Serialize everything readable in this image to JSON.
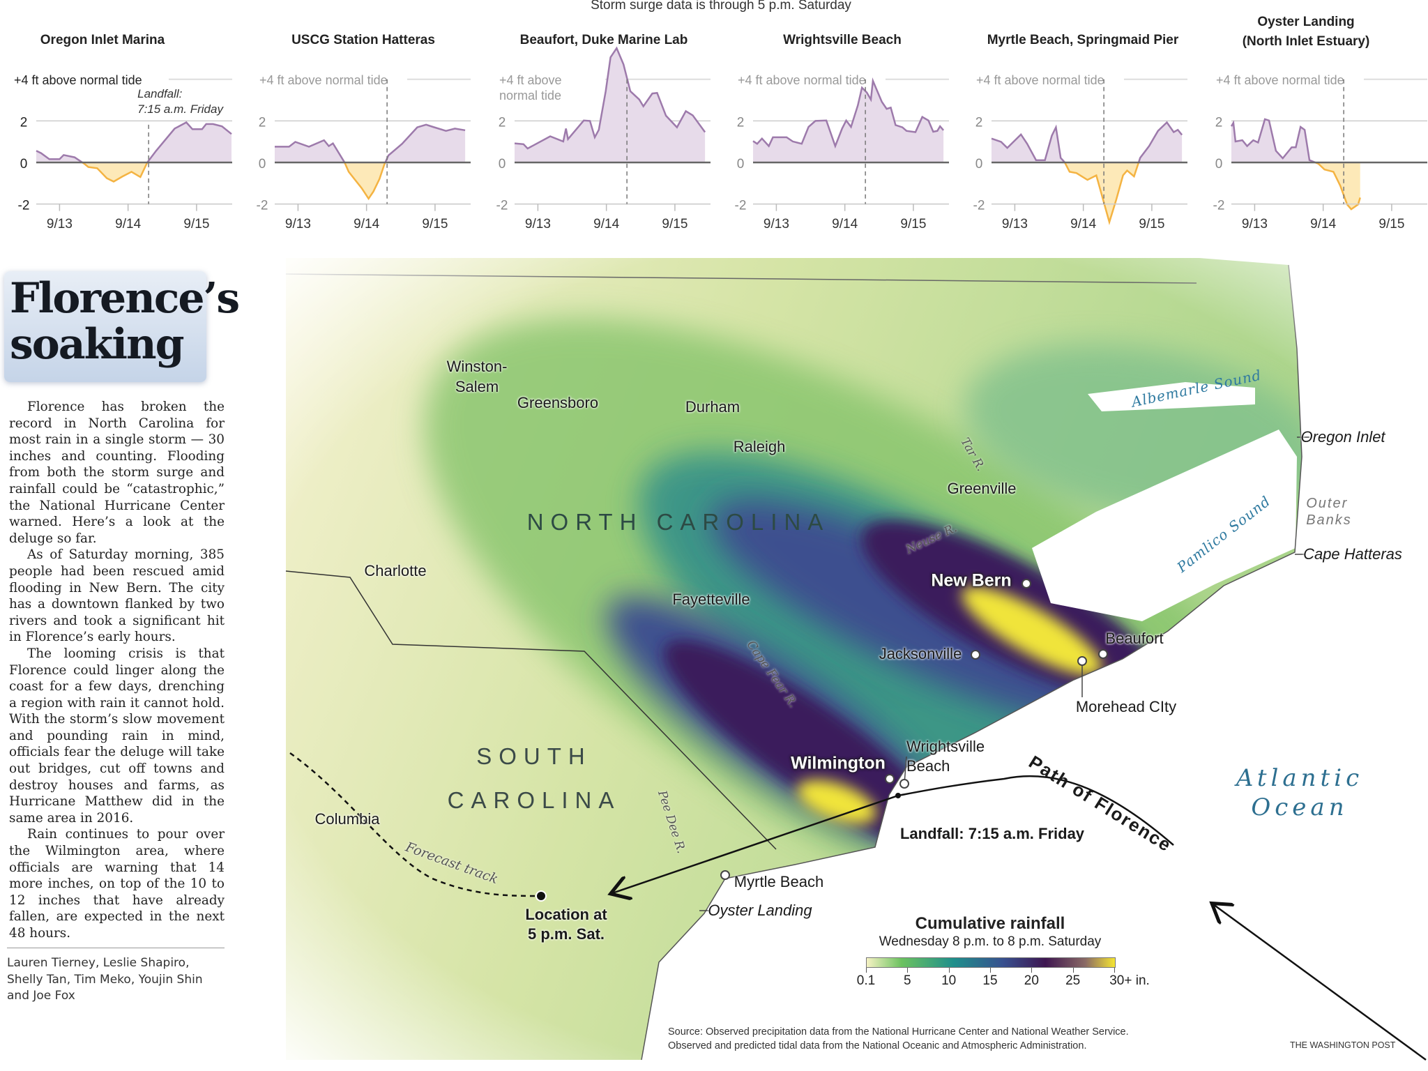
{
  "header": {
    "note": "Storm surge data is through 5 p.m. Saturday"
  },
  "chart_data": [
    {
      "type": "area",
      "title": "Oregon Inlet Marina",
      "ylabel": "+4 ft above normal tide",
      "xlim": [
        12.66,
        15.52
      ],
      "ylim": [
        -2.6,
        4
      ],
      "yticks": [
        2,
        0,
        -2
      ],
      "xticks": [
        {
          "v": 13,
          "label": "9/13"
        },
        {
          "v": 14,
          "label": "9/14"
        },
        {
          "v": 15,
          "label": "9/15"
        }
      ],
      "annotation": {
        "x": 14.3,
        "line1": "Landfall:",
        "line2": "7:15 a.m. Friday"
      },
      "x": [
        12.66,
        12.73,
        12.85,
        13.0,
        13.06,
        13.22,
        13.36,
        13.42,
        13.55,
        13.69,
        13.79,
        13.92,
        14.05,
        14.18,
        14.28,
        14.41,
        14.68,
        14.85,
        14.94,
        15.08,
        15.14,
        15.24,
        15.37,
        15.51
      ],
      "y": [
        0.56,
        0.45,
        0.16,
        0.16,
        0.36,
        0.25,
        -0.06,
        -0.22,
        -0.28,
        -0.76,
        -0.92,
        -0.67,
        -0.45,
        -0.7,
        0,
        0.56,
        1.63,
        1.93,
        1.6,
        1.6,
        1.85,
        1.85,
        1.74,
        1.37
      ]
    },
    {
      "type": "area",
      "title": "USCG Station Hatteras",
      "ylabel": "+4 ft above normal tide",
      "xlim": [
        12.66,
        15.52
      ],
      "ylim": [
        -2.6,
        4
      ],
      "yticks": [
        2,
        0,
        -2
      ],
      "xticks": [
        {
          "v": 13,
          "label": "9/13"
        },
        {
          "v": 14,
          "label": "9/14"
        },
        {
          "v": 15,
          "label": "9/15"
        }
      ],
      "landfall_x": 14.3,
      "x": [
        12.66,
        12.87,
        12.96,
        13.16,
        13.38,
        13.45,
        13.51,
        13.68,
        13.74,
        13.93,
        14.03,
        14.1,
        14.19,
        14.26,
        14.32,
        14.52,
        14.74,
        14.87,
        14.97,
        15.16,
        15.29,
        15.44
      ],
      "y": [
        0.76,
        0.76,
        0.99,
        0.76,
        1.07,
        0.79,
        0.92,
        0,
        -0.45,
        -1.24,
        -1.74,
        -1.4,
        -0.79,
        -0.1,
        0.34,
        0.9,
        1.69,
        1.82,
        1.71,
        1.52,
        1.63,
        1.55
      ]
    },
    {
      "type": "area",
      "title": "Beaufort, Duke Marine Lab",
      "ylabel": "+4 ft above normal tide",
      "xlim": [
        12.66,
        15.52
      ],
      "ylim": [
        -2.6,
        4
      ],
      "yticks": [
        2,
        0,
        -2
      ],
      "xticks": [
        {
          "v": 13,
          "label": "9/13"
        },
        {
          "v": 14,
          "label": "9/14"
        },
        {
          "v": 15,
          "label": "9/15"
        }
      ],
      "landfall_x": 14.3,
      "x": [
        12.66,
        12.79,
        12.85,
        13.18,
        13.37,
        13.41,
        13.44,
        13.67,
        13.76,
        13.83,
        13.89,
        13.99,
        14.06,
        14.15,
        14.25,
        14.35,
        14.48,
        14.54,
        14.67,
        14.74,
        14.87,
        15.03,
        15.16,
        15.26,
        15.44
      ],
      "y": [
        0.92,
        0.88,
        0.67,
        1.26,
        1.01,
        1.63,
        1.12,
        2.02,
        2.0,
        1.21,
        1.57,
        3.43,
        5.06,
        5.5,
        4.72,
        3.43,
        3.03,
        2.7,
        3.32,
        3.35,
        2.25,
        1.69,
        2.47,
        2.27,
        1.46
      ]
    },
    {
      "type": "area",
      "title": "Wrightsville Beach",
      "ylabel": "+4 ft above normal tide",
      "xlim": [
        12.66,
        15.52
      ],
      "ylim": [
        -2.6,
        4
      ],
      "yticks": [
        2,
        0,
        -2
      ],
      "xticks": [
        {
          "v": 13,
          "label": "9/13"
        },
        {
          "v": 14,
          "label": "9/14"
        },
        {
          "v": 15,
          "label": "9/15"
        }
      ],
      "landfall_x": 14.3,
      "x": [
        12.66,
        12.72,
        12.79,
        12.89,
        12.95,
        13.15,
        13.24,
        13.37,
        13.47,
        13.57,
        13.73,
        13.86,
        13.96,
        14.02,
        14.09,
        14.19,
        14.25,
        14.32,
        14.38,
        14.41,
        14.54,
        14.61,
        14.67,
        14.74,
        14.84,
        14.9,
        15.03,
        15.13,
        15.22,
        15.29,
        15.35,
        15.39,
        15.44
      ],
      "y": [
        1.03,
        0.9,
        1.15,
        0.79,
        1.21,
        1.21,
        1.01,
        0.9,
        1.71,
        2.0,
        2.02,
        0.79,
        1.63,
        2.02,
        1.71,
        2.75,
        3.6,
        3.37,
        3.03,
        3.93,
        2.92,
        2.58,
        2.64,
        1.8,
        1.69,
        1.52,
        1.46,
        2.19,
        2.02,
        1.48,
        1.52,
        1.74,
        1.55
      ]
    },
    {
      "type": "area",
      "title": "Myrtle Beach, Springmaid Pier",
      "ylabel": "+4 ft above normal tide",
      "xlim": [
        12.66,
        15.52
      ],
      "ylim": [
        -2.6,
        4
      ],
      "yticks": [
        2,
        0,
        -2
      ],
      "xticks": [
        {
          "v": 13,
          "label": "9/13"
        },
        {
          "v": 14,
          "label": "9/14"
        },
        {
          "v": 15,
          "label": "9/15"
        }
      ],
      "landfall_x": 14.3,
      "x": [
        12.66,
        12.8,
        12.89,
        13.09,
        13.18,
        13.31,
        13.44,
        13.54,
        13.6,
        13.67,
        13.73,
        13.8,
        13.9,
        14.06,
        14.19,
        14.28,
        14.38,
        14.48,
        14.58,
        14.64,
        14.74,
        14.83,
        14.96,
        15.09,
        15.22,
        15.32,
        15.38,
        15.44
      ],
      "y": [
        1.15,
        0.99,
        0.7,
        1.35,
        0.9,
        0.11,
        0.11,
        1.29,
        1.69,
        0.22,
        0,
        -0.45,
        -0.51,
        -0.84,
        -0.62,
        -1.69,
        -2.87,
        -1.8,
        -0.62,
        -0.39,
        -0.67,
        0.22,
        0.79,
        1.52,
        1.93,
        1.46,
        1.57,
        1.33
      ]
    },
    {
      "type": "area",
      "title": "Oyster Landing (North Inlet Estuary)",
      "title_line1": "Oyster Landing",
      "title_line2": "(North Inlet Estuary)",
      "ylabel": "+4 ft above normal tide",
      "xlim": [
        12.66,
        15.52
      ],
      "ylim": [
        -2.6,
        4
      ],
      "yticks": [
        2,
        0,
        -2
      ],
      "xticks": [
        {
          "v": 13,
          "label": "9/13"
        },
        {
          "v": 14,
          "label": "9/14"
        },
        {
          "v": 15,
          "label": "9/15"
        }
      ],
      "landfall_x": 14.3,
      "x": [
        12.66,
        12.69,
        12.72,
        12.82,
        12.89,
        12.98,
        13.05,
        13.15,
        13.21,
        13.31,
        13.41,
        13.54,
        13.6,
        13.67,
        13.73,
        13.8,
        13.93,
        14.02,
        14.15,
        14.25,
        14.35,
        14.41,
        14.51,
        14.54
      ],
      "y": [
        1.74,
        1.91,
        1.01,
        1.07,
        0.79,
        1.07,
        0.96,
        2.08,
        2.02,
        0.56,
        0.2,
        0.73,
        0.73,
        1.71,
        1.57,
        0.11,
        -0.06,
        -0.34,
        -0.45,
        -1.12,
        -2.02,
        -2.25,
        -2.02,
        -1.69
      ]
    }
  ],
  "colors": {
    "above": "#9d7aab",
    "above_fill": "#e7dbea",
    "below": "#f4b342",
    "below_fill": "#fde9b8"
  },
  "article": {
    "title_line1": "Florence’s",
    "title_line2": "soaking",
    "paragraphs": [
      "Florence has broken the record in North Carolina for most rain in a single storm — 30 inches and counting. Flooding from both the storm surge and rainfall could be “catastrophic,” the National Hurricane Center warned. Here’s a look at the deluge so far.",
      "As of Saturday morning, 385 people had been rescued amid flooding in New Bern. The city has a downtown flanked by two rivers and took a significant hit in Florence’s early hours.",
      "The looming crisis is that Florence could linger along the coast for a few days, drenching a region with rain it cannot hold. With the storm’s slow movement and pounding rain in mind, officials fear the deluge will take out bridges, cut off towns and destroy houses and farms, as Hurricane Matthew did in the same area in 2016.",
      "Rain continues to pour over the Wilmington area, where officials are warning that 14 more inches, on top of the 10 to 12 inches that have already fallen, are expected in the next 48 hours."
    ],
    "byline": "Lauren Tierney, Leslie Shapiro, Shelly Tan, Tim Meko, Youjin Shin and Joe Fox"
  },
  "map": {
    "cities": {
      "winston_1": "Winston-",
      "winston_2": "Salem",
      "greensboro": "Greensboro",
      "durham": "Durham",
      "raleigh": "Raleigh",
      "greenville": "Greenville",
      "charlotte": "Charlotte",
      "fayetteville": "Fayetteville",
      "new_bern": "New Bern",
      "jacksonville": "Jacksonville",
      "beaufort": "Beaufort",
      "morehead": "Morehead CIty",
      "wrightsville_1": "Wrightsville",
      "wrightsville_2": "Beach",
      "wilmington": "Wilmington",
      "columbia": "Columbia",
      "myrtle": "Myrtle Beach",
      "oyster": "Oyster Landing",
      "oregon_inlet": "Oregon Inlet",
      "cape_hatteras": "Cape Hatteras"
    },
    "states": {
      "nc": "NORTH CAROLINA",
      "sc_1": "SOUTH",
      "sc_2": "CAROLINA"
    },
    "water": {
      "albemarle": "Albemarle Sound",
      "pamlico": "Pamlico Sound",
      "outer_1": "Outer",
      "outer_2": "Banks",
      "ocean_1": "Atlantic",
      "ocean_2": "Ocean"
    },
    "rivers": {
      "tar": "Tar R.",
      "neuse": "Neuse R.",
      "cape_fear": "Cape Fear R.",
      "pee_dee": "Pee Dee R."
    },
    "storm": {
      "path": "Path of Florence",
      "landfall": "Landfall: 7:15 a.m. Friday",
      "forecast": "Forecast track",
      "location_1": "Location at",
      "location_2": "5 p.m. Sat."
    }
  },
  "legend": {
    "title": "Cumulative rainfall",
    "subtitle": "Wednesday 8 p.m. to 8 p.m. Saturday",
    "ticks": [
      "0.1",
      "5",
      "10",
      "15",
      "20",
      "25",
      "30+ in."
    ],
    "colors": [
      "#f6f2c4",
      "#6cc260",
      "#1f8f8b",
      "#38508f",
      "#3e1650",
      "#8a6a66",
      "#f5e532"
    ]
  },
  "footer": {
    "source_1": "Source: Observed precipitation data from the National Hurricane Center and National Weather Service.",
    "source_2": "Observed and predicted tidal data from the National Oceanic and Atmospheric Administration.",
    "credit": "THE WASHINGTON POST"
  }
}
